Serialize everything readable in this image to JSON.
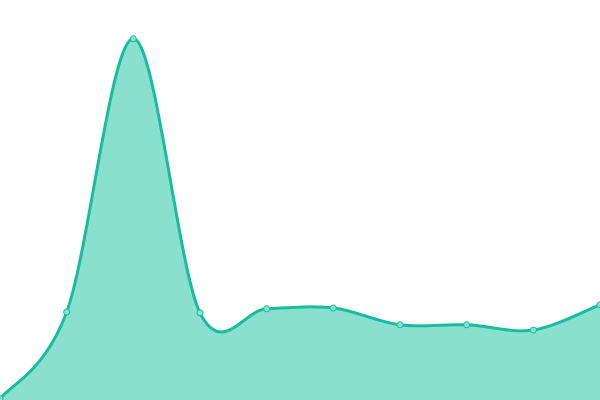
{
  "chart_data": {
    "type": "area",
    "smooth": true,
    "title": "",
    "xlabel": "",
    "ylabel": "",
    "x": [
      0,
      1,
      2,
      3,
      4,
      5,
      6,
      7,
      8,
      9
    ],
    "values": [
      0.3,
      22,
      90.3,
      21.8,
      22.8,
      23,
      18.8,
      18.8,
      17.5,
      23.8
    ],
    "xlim": [
      0,
      9
    ],
    "ylim": [
      0,
      100
    ],
    "grid": false,
    "axes_visible": false,
    "legend": "none",
    "colors": {
      "line": "#1abc9c",
      "fill": "#8ae0cf",
      "marker_fill": "#8ae0cf",
      "background": "#ffffff"
    }
  }
}
